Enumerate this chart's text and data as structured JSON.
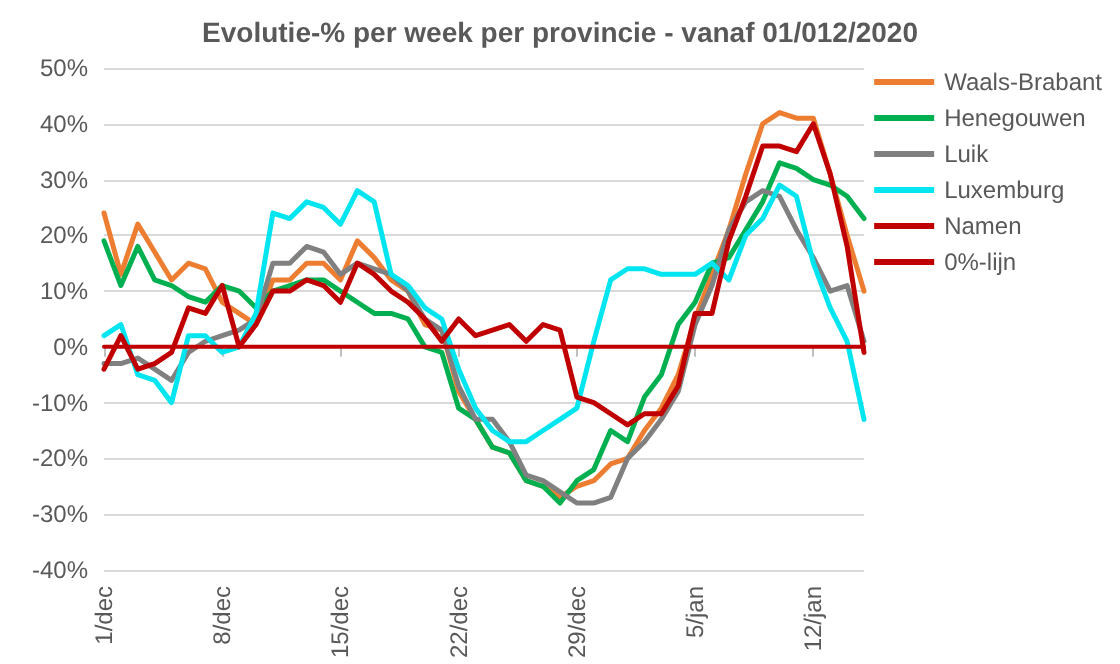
{
  "chart_data": {
    "type": "line",
    "title": "Evolutie-% per week per provincie - vanaf 01/012/2020",
    "categories": [
      "1/dec",
      null,
      null,
      null,
      null,
      null,
      null,
      "8/dec",
      null,
      null,
      null,
      null,
      null,
      null,
      "15/dec",
      null,
      null,
      null,
      null,
      null,
      null,
      "22/dec",
      null,
      null,
      null,
      null,
      null,
      null,
      "29/dec",
      null,
      null,
      null,
      null,
      null,
      null,
      "5/jan",
      null,
      null,
      null,
      null,
      null,
      null,
      "12/jan",
      null,
      null,
      null
    ],
    "series": [
      {
        "name": "Waals-Brabant",
        "color": "#ed7d31",
        "values": [
          24,
          13,
          22,
          17,
          12,
          15,
          14,
          8,
          6,
          4,
          12,
          12,
          15,
          15,
          12,
          19,
          16,
          12,
          10,
          4,
          3,
          -8,
          -13,
          -18,
          -19,
          -24,
          -25,
          -27,
          -25,
          -24,
          -21,
          -20,
          -15,
          -11,
          -5,
          5,
          13,
          21,
          31,
          40,
          42,
          41,
          41,
          31,
          20,
          10
        ]
      },
      {
        "name": "Henegouwen",
        "color": "#00b050",
        "values": [
          19,
          11,
          18,
          12,
          11,
          9,
          8,
          11,
          10,
          7,
          10,
          11,
          12,
          12,
          10,
          8,
          6,
          6,
          5,
          0,
          -1,
          -11,
          -13,
          -18,
          -19,
          -24,
          -25,
          -28,
          -24,
          -22,
          -15,
          -17,
          -9,
          -5,
          4,
          8,
          15,
          16,
          21,
          26,
          33,
          32,
          30,
          29,
          27,
          23
        ]
      },
      {
        "name": "Luik",
        "color": "#808080",
        "values": [
          -3,
          -3,
          -2,
          -4,
          -6,
          -1,
          1,
          2,
          3,
          5,
          15,
          15,
          18,
          17,
          13,
          15,
          14,
          13,
          10,
          5,
          3,
          -7,
          -13,
          -13,
          -17,
          -23,
          -24,
          -26,
          -28,
          -28,
          -27,
          -20,
          -17,
          -13,
          -8,
          4,
          11,
          21,
          26,
          28,
          27,
          21,
          16,
          10,
          11,
          1
        ]
      },
      {
        "name": "Luxemburg",
        "color": "#00e5f0",
        "values": [
          2,
          4,
          -5,
          -6,
          -10,
          2,
          2,
          -1,
          0,
          6,
          24,
          23,
          26,
          25,
          22,
          28,
          26,
          13,
          11,
          7,
          5,
          -4,
          -11,
          -15,
          -17,
          -17,
          -15,
          -13,
          -11,
          1,
          12,
          14,
          14,
          13,
          13,
          13,
          15,
          12,
          20,
          23,
          29,
          27,
          15,
          7,
          1,
          -13
        ]
      },
      {
        "name": "Namen",
        "color": "#c00000",
        "values": [
          -4,
          2,
          -4,
          -3,
          -1,
          7,
          6,
          11,
          0,
          4,
          10,
          10,
          12,
          11,
          8,
          15,
          13,
          10,
          8,
          5,
          1,
          5,
          2,
          3,
          4,
          1,
          4,
          3,
          -9,
          -10,
          -12,
          -14,
          -12,
          -12,
          -7,
          6,
          6,
          19,
          27,
          36,
          36,
          35,
          40,
          31,
          18,
          -1
        ]
      },
      {
        "name": "0%-lijn",
        "color": "#c00000",
        "values": [
          0,
          0,
          0,
          0,
          0,
          0,
          0,
          0,
          0,
          0,
          0,
          0,
          0,
          0,
          0,
          0,
          0,
          0,
          0,
          0,
          0,
          0,
          0,
          0,
          0,
          0,
          0,
          0,
          0,
          0,
          0,
          0,
          0,
          0,
          0,
          0,
          0,
          0,
          0,
          0,
          0,
          0,
          0,
          0,
          0,
          0
        ]
      }
    ],
    "ylim": [
      -40,
      50
    ],
    "yticks": [
      {
        "value": -40,
        "label": "-40%"
      },
      {
        "value": -30,
        "label": "-30%"
      },
      {
        "value": -20,
        "label": "-20%"
      },
      {
        "value": -10,
        "label": "-10%"
      },
      {
        "value": 0,
        "label": "0%"
      },
      {
        "value": 10,
        "label": "10%"
      },
      {
        "value": 20,
        "label": "20%"
      },
      {
        "value": 30,
        "label": "30%"
      },
      {
        "value": 40,
        "label": "40%"
      },
      {
        "value": 50,
        "label": "50%"
      }
    ],
    "grid": "y",
    "legend": "top right",
    "marker": "none",
    "line_style": "solid"
  }
}
